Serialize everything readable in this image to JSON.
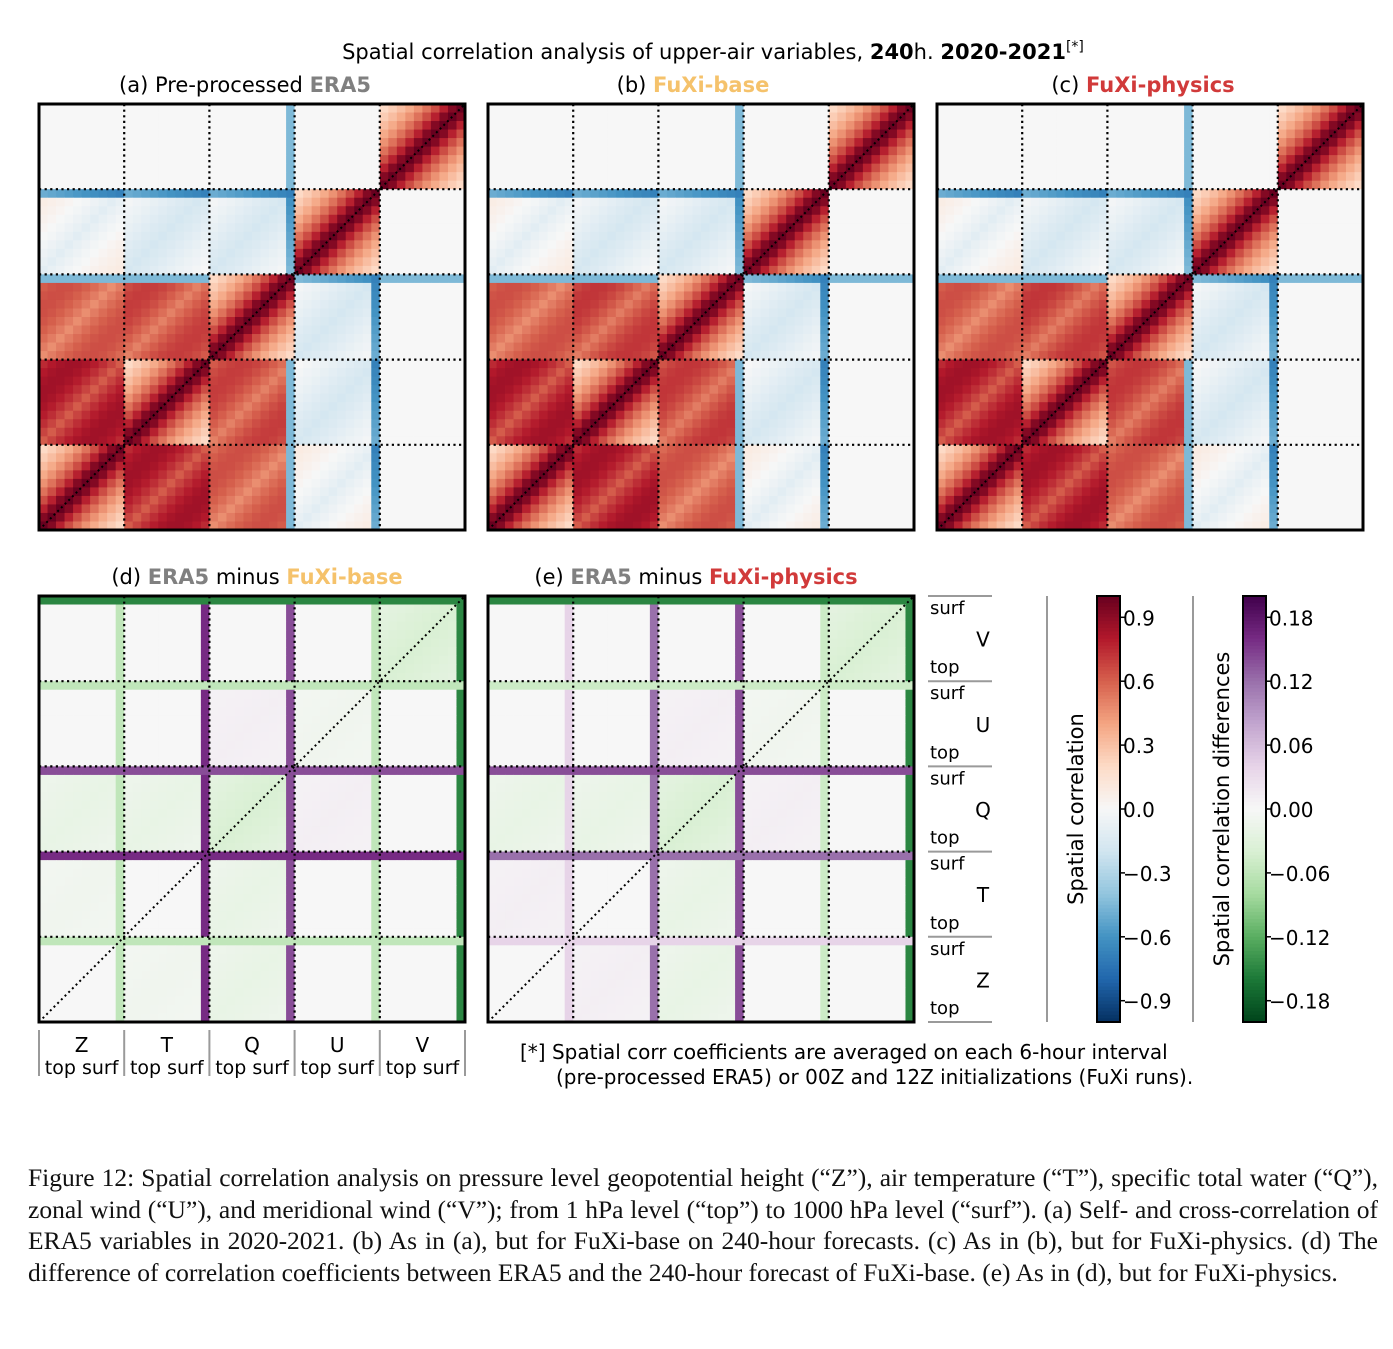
{
  "figure": {
    "title": {
      "prefix": "Spatial correlation analysis of upper-air variables, ",
      "lead": "240",
      "unit": "h. ",
      "period": "2020-2021",
      "note": "[*]"
    },
    "footnote": [
      "[*] Spatial corr coefficients are averaged on each 6-hour interval",
      "(pre-processed ERA5) or 00Z and 12Z initializations (FuXi runs)."
    ],
    "caption": "Figure 12: Spatial correlation analysis on pressure level geopotential height (“Z”), air temperature (“T”), specific total water (“Q”), zonal wind (“U”), and meridional wind (“V”); from 1 hPa level (“top”) to 1000 hPa level (“surf”). (a) Self- and cross-correlation of ERA5 variables in 2020-2021. (b) As in (a), but for FuXi-base on 240-hour forecasts. (c) As in (b), but for FuXi-physics. (d) The difference of correlation coefficients between ERA5 and the 240-hour forecast of FuXi-base. (e) As in (d), but for FuXi-physics."
  },
  "colors": {
    "era5_label": "#808080",
    "fuxi_base_label": "#f5c26b",
    "fuxi_physics_label": "#d13a3a",
    "rdbu": [
      "#053061",
      "#2166ac",
      "#4393c3",
      "#92c5de",
      "#d1e5f0",
      "#f7f7f7",
      "#fddbc7",
      "#f4a582",
      "#d6604d",
      "#b2182b",
      "#67001f"
    ],
    "prgn": [
      "#00441b",
      "#1b7837",
      "#5aae61",
      "#a6dba0",
      "#d9f0d3",
      "#f7f7f7",
      "#e7d4e8",
      "#c2a5cf",
      "#9970ab",
      "#762a83",
      "#40004b"
    ]
  },
  "chart_data": [
    {
      "type": "heatmap",
      "panel": "a",
      "title": {
        "prefix": "(a) Pre-processed ",
        "model": "ERA5",
        "suffix": ""
      },
      "variables": [
        "Z",
        "T",
        "Q",
        "U",
        "V"
      ],
      "level_labels": [
        "top",
        "surf"
      ],
      "value_range": [
        -1,
        1
      ],
      "block_correlation_estimate": [
        [
          1.0,
          0.85,
          0.65,
          0.1,
          0.0
        ],
        [
          0.85,
          1.0,
          0.7,
          0.0,
          0.0
        ],
        [
          0.65,
          0.7,
          1.0,
          0.0,
          0.0
        ],
        [
          0.1,
          0.0,
          0.0,
          1.0,
          0.0
        ],
        [
          0.0,
          0.0,
          0.0,
          0.0,
          1.0
        ]
      ]
    },
    {
      "type": "heatmap",
      "panel": "b",
      "title": {
        "prefix": "(b) ",
        "model": "FuXi-base",
        "suffix": ""
      },
      "variables": [
        "Z",
        "T",
        "Q",
        "U",
        "V"
      ],
      "level_labels": [
        "top",
        "surf"
      ],
      "value_range": [
        -1,
        1
      ],
      "block_correlation_estimate": [
        [
          1.0,
          0.85,
          0.65,
          0.1,
          0.0
        ],
        [
          0.85,
          1.0,
          0.72,
          0.0,
          0.0
        ],
        [
          0.65,
          0.72,
          1.0,
          0.0,
          0.0
        ],
        [
          0.1,
          0.0,
          0.0,
          1.0,
          0.0
        ],
        [
          0.0,
          0.0,
          0.0,
          0.0,
          1.0
        ]
      ]
    },
    {
      "type": "heatmap",
      "panel": "c",
      "title": {
        "prefix": "(c) ",
        "model": "FuXi-physics",
        "suffix": ""
      },
      "variables": [
        "Z",
        "T",
        "Q",
        "U",
        "V"
      ],
      "level_labels": [
        "top",
        "surf"
      ],
      "value_range": [
        -1,
        1
      ],
      "block_correlation_estimate": [
        [
          1.0,
          0.85,
          0.65,
          0.1,
          0.0
        ],
        [
          0.85,
          1.0,
          0.72,
          0.0,
          0.0
        ],
        [
          0.65,
          0.72,
          1.0,
          0.0,
          0.0
        ],
        [
          0.1,
          0.0,
          0.0,
          1.0,
          0.0
        ],
        [
          0.0,
          0.0,
          0.0,
          0.0,
          1.0
        ]
      ]
    },
    {
      "type": "heatmap",
      "panel": "d",
      "title": {
        "prefix": "(d) ",
        "model_a": "ERA5",
        "mid": " minus ",
        "model_b": "FuXi-base"
      },
      "variables": [
        "Z",
        "T",
        "Q",
        "U",
        "V"
      ],
      "level_labels": [
        "top",
        "surf"
      ],
      "value_range": [
        -0.2,
        0.2
      ],
      "block_difference_estimate": [
        [
          0.0,
          -0.01,
          -0.02,
          0.0,
          0.0
        ],
        [
          -0.01,
          0.0,
          -0.02,
          0.0,
          0.0
        ],
        [
          -0.02,
          -0.02,
          -0.04,
          0.01,
          0.0
        ],
        [
          0.0,
          0.0,
          0.01,
          -0.01,
          0.0
        ],
        [
          0.0,
          0.0,
          0.0,
          0.0,
          -0.04
        ]
      ],
      "surface_row_difference_estimate": [
        -0.06,
        0.16,
        0.14,
        -0.06,
        -0.15
      ]
    },
    {
      "type": "heatmap",
      "panel": "e",
      "title": {
        "prefix": "(e) ",
        "model_a": "ERA5",
        "mid": " minus ",
        "model_b": "FuXi-physics"
      },
      "variables": [
        "Z",
        "T",
        "Q",
        "U",
        "V"
      ],
      "level_labels": [
        "top",
        "surf"
      ],
      "value_range": [
        -0.2,
        0.2
      ],
      "block_difference_estimate": [
        [
          0.0,
          0.01,
          -0.02,
          0.0,
          0.0
        ],
        [
          0.01,
          0.0,
          -0.02,
          0.0,
          0.0
        ],
        [
          -0.02,
          -0.02,
          -0.04,
          0.01,
          0.0
        ],
        [
          0.0,
          0.0,
          0.01,
          -0.01,
          0.0
        ],
        [
          0.0,
          0.0,
          0.0,
          0.0,
          -0.04
        ]
      ],
      "surface_row_difference_estimate": [
        0.04,
        0.12,
        0.14,
        -0.05,
        -0.15
      ]
    }
  ],
  "colorbars": [
    {
      "label": "Spatial correlation",
      "ticks": [
        "0.9",
        "0.6",
        "0.3",
        "0.0",
        "−0.3",
        "−0.6",
        "−0.9"
      ],
      "tick_values": [
        0.9,
        0.6,
        0.3,
        0.0,
        -0.3,
        -0.6,
        -0.9
      ],
      "range": [
        -1,
        1
      ]
    },
    {
      "label": "Spatial correlation differences",
      "ticks": [
        "0.18",
        "0.12",
        "0.06",
        "0.00",
        "−0.06",
        "−0.12",
        "−0.18"
      ],
      "tick_values": [
        0.18,
        0.12,
        0.06,
        0.0,
        -0.06,
        -0.12,
        -0.18
      ],
      "range": [
        -0.2,
        0.2
      ]
    }
  ]
}
